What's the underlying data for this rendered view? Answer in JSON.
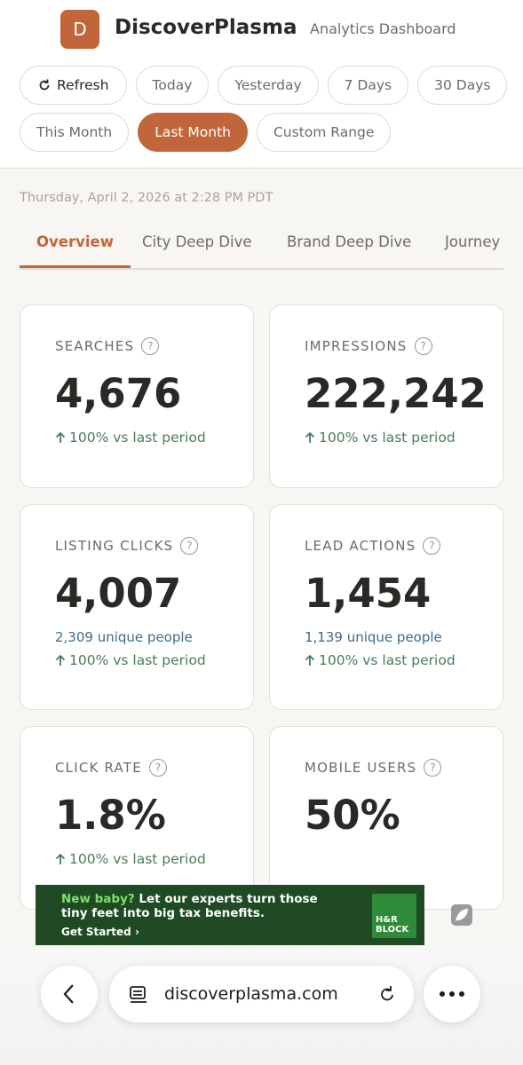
{
  "header": {
    "logo_letter": "D",
    "brand": "DiscoverPlasma",
    "subtitle": "Analytics Dashboard"
  },
  "filters": {
    "refresh": "Refresh",
    "ranges": [
      {
        "label": "Today",
        "active": false
      },
      {
        "label": "Yesterday",
        "active": false
      },
      {
        "label": "7 Days",
        "active": false
      },
      {
        "label": "30 Days",
        "active": false
      },
      {
        "label": "This Month",
        "active": false
      },
      {
        "label": "Last Month",
        "active": true
      },
      {
        "label": "Custom Range",
        "active": false
      }
    ]
  },
  "timestamp": "Thursday, April 2, 2026 at 2:28 PM PDT",
  "tabs": [
    {
      "label": "Overview",
      "active": true
    },
    {
      "label": "City Deep Dive",
      "active": false
    },
    {
      "label": "Brand Deep Dive",
      "active": false
    },
    {
      "label": "Journey",
      "active": false
    }
  ],
  "cards": [
    {
      "label": "SEARCHES",
      "value": "4,676",
      "change": "100% vs last period"
    },
    {
      "label": "IMPRESSIONS",
      "value": "222,242",
      "change": "100% vs last period"
    },
    {
      "label": "LISTING CLICKS",
      "value": "4,007",
      "unique": "2,309 unique people",
      "change": "100% vs last period"
    },
    {
      "label": "LEAD ACTIONS",
      "value": "1,454",
      "unique": "1,139 unique people",
      "change": "100% vs last period"
    },
    {
      "label": "CLICK RATE",
      "value": "1.8%",
      "change": "100% vs last period"
    },
    {
      "label": "MOBILE USERS",
      "value": "50%"
    }
  ],
  "ad": {
    "highlight": "New baby?",
    "text": "Let our experts turn those tiny feet into big tax benefits.",
    "cta": "Get Started",
    "brand": "H&R BLOCK"
  },
  "browser": {
    "url": "discoverplasma.com"
  }
}
